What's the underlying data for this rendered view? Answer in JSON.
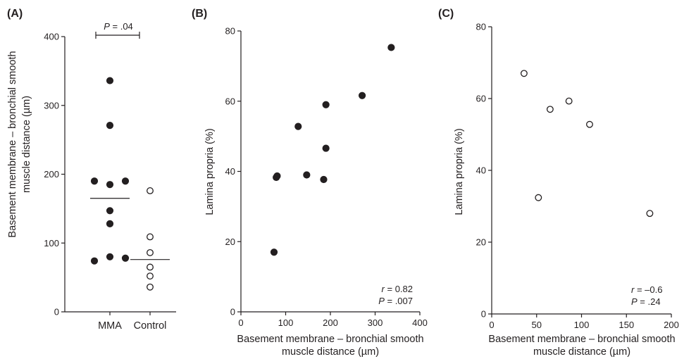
{
  "chart_data": [
    {
      "panel": "(A)",
      "type": "scatter",
      "categories": [
        "MMA",
        "Control"
      ],
      "ylabel": "Basement membrane – bronchial smooth muscle distance (µm)",
      "ylim": [
        0,
        400
      ],
      "yticks": [
        0,
        100,
        200,
        300,
        400
      ],
      "grid": false,
      "series": [
        {
          "category": "MMA",
          "marker": "filled",
          "values": [
            336,
            271,
            190,
            190,
            185,
            147,
            128,
            80,
            78,
            74
          ],
          "median": 165
        },
        {
          "category": "Control",
          "marker": "open",
          "values": [
            176,
            109,
            86,
            65,
            52,
            36
          ],
          "median": 76
        }
      ],
      "annotation": {
        "p_label": "P",
        "p_value": " = .04"
      }
    },
    {
      "panel": "(B)",
      "type": "scatter",
      "xlabel": "Basement membrane – bronchial smooth muscle distance (µm)",
      "ylabel": "Lamina propria (%)",
      "xlim": [
        0,
        400
      ],
      "xticks": [
        0,
        100,
        200,
        300,
        400
      ],
      "ylim": [
        0,
        80
      ],
      "yticks": [
        0,
        20,
        40,
        60,
        80
      ],
      "grid": false,
      "marker": "filled",
      "points": [
        {
          "x": 74,
          "y": 17
        },
        {
          "x": 79,
          "y": 38.3
        },
        {
          "x": 81,
          "y": 38.7
        },
        {
          "x": 128,
          "y": 52.8
        },
        {
          "x": 147,
          "y": 39
        },
        {
          "x": 185,
          "y": 37.7
        },
        {
          "x": 190,
          "y": 59
        },
        {
          "x": 190,
          "y": 46.6
        },
        {
          "x": 271,
          "y": 61.6
        },
        {
          "x": 336,
          "y": 75.3
        }
      ],
      "stats": {
        "r_label": "r",
        "r_value": " = 0.82",
        "p_label": "P",
        "p_value": " = .007"
      }
    },
    {
      "panel": "(C)",
      "type": "scatter",
      "xlabel": "Basement membrane – bronchial smooth muscle distance (µm)",
      "ylabel": "Lamina propria (%)",
      "xlim": [
        0,
        200
      ],
      "xticks": [
        0,
        50,
        100,
        150,
        200
      ],
      "ylim": [
        0,
        80
      ],
      "yticks": [
        0,
        20,
        40,
        60,
        80
      ],
      "grid": false,
      "marker": "open",
      "points": [
        {
          "x": 36,
          "y": 67
        },
        {
          "x": 52,
          "y": 32.4
        },
        {
          "x": 65,
          "y": 57
        },
        {
          "x": 86,
          "y": 59.3
        },
        {
          "x": 109,
          "y": 52.8
        },
        {
          "x": 176,
          "y": 28
        }
      ],
      "stats": {
        "r_label": "r",
        "r_value": " = –0.6",
        "p_label": "P",
        "p_value": " = .24"
      }
    }
  ]
}
